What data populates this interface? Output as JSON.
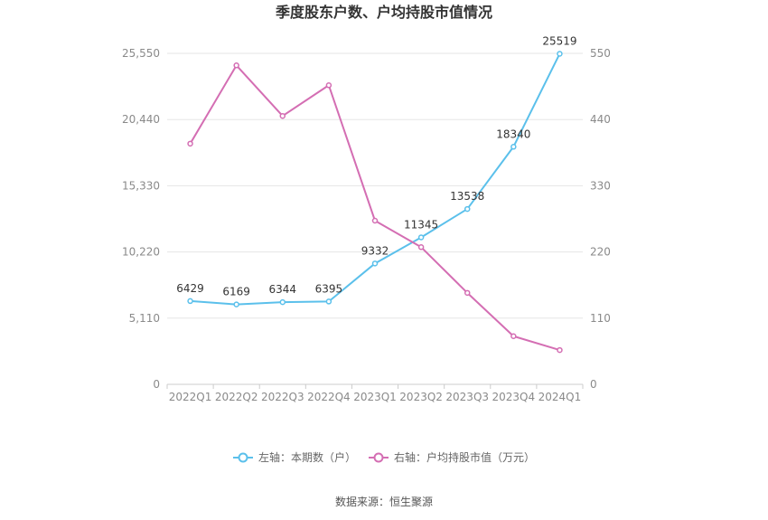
{
  "chart_data": {
    "type": "line",
    "title": "季度股东户数、户均持股市值情况",
    "categories": [
      "2022Q1",
      "2022Q2",
      "2022Q3",
      "2022Q4",
      "2023Q1",
      "2023Q2",
      "2023Q3",
      "2023Q4",
      "2024Q1"
    ],
    "series": [
      {
        "name": "左轴：本期数（户）",
        "axis": "left",
        "color": "#5bc0eb",
        "values": [
          6429,
          6169,
          6344,
          6395,
          9332,
          11345,
          13538,
          18340,
          25519
        ],
        "labels": [
          "6429",
          "6169",
          "6344",
          "6395",
          "9332",
          "11345",
          "13538",
          "18340",
          "25519"
        ]
      },
      {
        "name": "右轴：户均持股市值（万元）",
        "axis": "right",
        "color": "#d46eb3",
        "values": [
          400,
          530,
          446,
          497,
          272,
          228,
          152,
          80,
          57
        ]
      }
    ],
    "left_axis": {
      "ylim": [
        0,
        25550
      ],
      "ticks": [
        "0",
        "5,110",
        "10,220",
        "15,330",
        "20,440",
        "25,550"
      ]
    },
    "right_axis": {
      "ylim": [
        0,
        550
      ],
      "ticks": [
        "0",
        "110",
        "220",
        "330",
        "440",
        "550"
      ]
    },
    "grid": true,
    "legend": "bottom-center",
    "source": "数据来源：恒生聚源"
  }
}
